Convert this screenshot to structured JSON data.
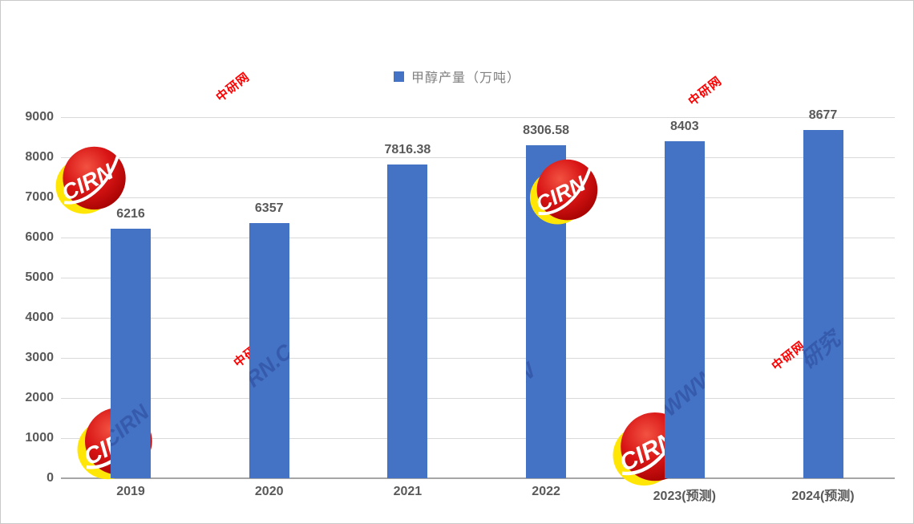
{
  "chart_data": {
    "type": "bar",
    "title": "甲醇产量（万吨）",
    "categories": [
      "2019",
      "2020",
      "2021",
      "2022",
      "2023(预测)",
      "2024(预测)"
    ],
    "values": [
      6216,
      6357,
      7816.38,
      8306.58,
      8403,
      8677
    ],
    "data_labels": [
      "6216",
      "6357",
      "7816.38",
      "8306.58",
      "8403",
      "8677"
    ],
    "xlabel": "",
    "ylabel": "",
    "ylim": [
      0,
      9000
    ],
    "ytick_interval": 1000,
    "ytick_labels": [
      "0",
      "1000",
      "2000",
      "3000",
      "4000",
      "5000",
      "6000",
      "7000",
      "8000",
      "9000"
    ],
    "grid": "horizontal",
    "bar_color": "#4472C4",
    "legend": {
      "position": "top-center",
      "label": "甲醇产量（万吨）",
      "swatch_color": "#4472C4"
    }
  },
  "colors": {
    "bar": "#4472C4",
    "gridline": "#D9D9D9",
    "axis_line": "#A6A6A6",
    "tick_label": "#595959",
    "data_label": "#595959",
    "legend_text": "#7F7F7F",
    "watermark_red": "#FF0000",
    "background": "#FFFFFF"
  },
  "watermarks": {
    "red_stamp_text": "中研网",
    "logo_text": "CIRN",
    "bar_overlay_fragments": [
      "CIRN",
      "RN.C 研",
      "",
      "W",
      "WWW 中",
      "研究 .CO"
    ]
  }
}
